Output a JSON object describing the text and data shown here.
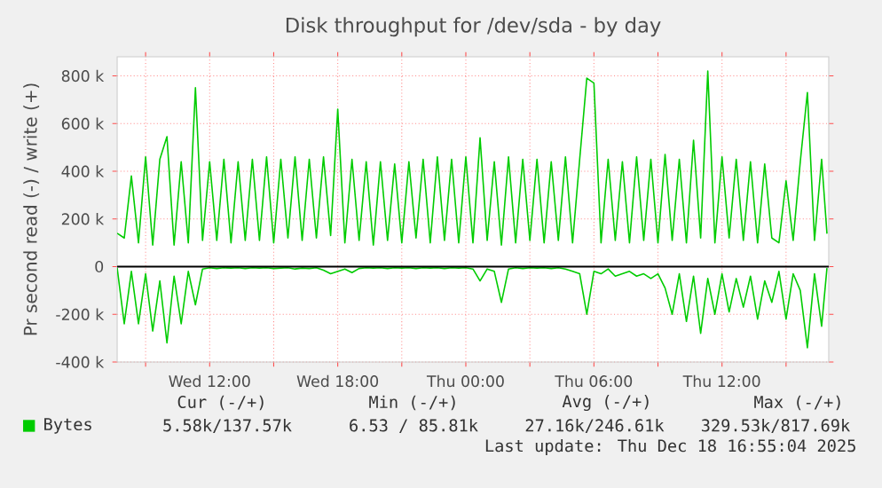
{
  "chart_data": {
    "type": "line",
    "title": "Disk throughput for /dev/sda - by day",
    "ylabel": "Pr second read (-) / write (+)",
    "x": [
      "2025-12-17T07:40",
      "2025-12-17T08:00",
      "2025-12-17T08:20",
      "2025-12-17T08:40",
      "2025-12-17T09:00",
      "2025-12-17T09:20",
      "2025-12-17T09:40",
      "2025-12-17T10:00",
      "2025-12-17T10:20",
      "2025-12-17T10:40",
      "2025-12-17T11:00",
      "2025-12-17T11:20",
      "2025-12-17T11:40",
      "2025-12-17T12:00",
      "2025-12-17T12:20",
      "2025-12-17T12:40",
      "2025-12-17T13:00",
      "2025-12-17T13:20",
      "2025-12-17T13:40",
      "2025-12-17T14:00",
      "2025-12-17T14:20",
      "2025-12-17T14:40",
      "2025-12-17T15:00",
      "2025-12-17T15:20",
      "2025-12-17T15:40",
      "2025-12-17T16:00",
      "2025-12-17T16:20",
      "2025-12-17T16:40",
      "2025-12-17T17:00",
      "2025-12-17T17:20",
      "2025-12-17T17:40",
      "2025-12-17T18:00",
      "2025-12-17T18:20",
      "2025-12-17T18:40",
      "2025-12-17T19:00",
      "2025-12-17T19:20",
      "2025-12-17T19:40",
      "2025-12-17T20:00",
      "2025-12-17T20:20",
      "2025-12-17T20:40",
      "2025-12-17T21:00",
      "2025-12-17T21:20",
      "2025-12-17T21:40",
      "2025-12-17T22:00",
      "2025-12-17T22:20",
      "2025-12-17T22:40",
      "2025-12-17T23:00",
      "2025-12-17T23:20",
      "2025-12-17T23:40",
      "2025-12-18T00:00",
      "2025-12-18T00:20",
      "2025-12-18T00:40",
      "2025-12-18T01:00",
      "2025-12-18T01:20",
      "2025-12-18T01:40",
      "2025-12-18T02:00",
      "2025-12-18T02:20",
      "2025-12-18T02:40",
      "2025-12-18T03:00",
      "2025-12-18T03:20",
      "2025-12-18T03:40",
      "2025-12-18T04:00",
      "2025-12-18T04:20",
      "2025-12-18T04:40",
      "2025-12-18T05:00",
      "2025-12-18T05:20",
      "2025-12-18T05:40",
      "2025-12-18T06:00",
      "2025-12-18T06:20",
      "2025-12-18T06:40",
      "2025-12-18T07:00",
      "2025-12-18T07:20",
      "2025-12-18T07:40",
      "2025-12-18T08:00",
      "2025-12-18T08:20",
      "2025-12-18T08:40",
      "2025-12-18T09:00",
      "2025-12-18T09:20",
      "2025-12-18T09:40",
      "2025-12-18T10:00",
      "2025-12-18T10:20",
      "2025-12-18T10:40",
      "2025-12-18T11:00",
      "2025-12-18T11:20",
      "2025-12-18T11:40",
      "2025-12-18T12:00",
      "2025-12-18T12:20",
      "2025-12-18T12:40",
      "2025-12-18T13:00",
      "2025-12-18T13:20",
      "2025-12-18T13:40",
      "2025-12-18T14:00",
      "2025-12-18T14:20",
      "2025-12-18T14:40",
      "2025-12-18T15:00",
      "2025-12-18T15:20",
      "2025-12-18T15:40",
      "2025-12-18T16:00",
      "2025-12-18T16:20",
      "2025-12-18T16:40",
      "2025-12-18T16:55"
    ],
    "series": [
      {
        "name": "Bytes",
        "color": "#00cc00",
        "values": [
          140,
          120,
          380,
          100,
          460,
          90,
          450,
          545,
          90,
          440,
          100,
          750,
          110,
          440,
          110,
          450,
          100,
          440,
          110,
          450,
          110,
          460,
          100,
          450,
          120,
          460,
          110,
          450,
          120,
          460,
          130,
          660,
          100,
          450,
          110,
          440,
          90,
          440,
          110,
          430,
          100,
          440,
          120,
          450,
          100,
          460,
          110,
          450,
          100,
          460,
          100,
          540,
          110,
          440,
          90,
          460,
          100,
          450,
          110,
          450,
          100,
          440,
          110,
          460,
          100,
          450,
          790,
          770,
          100,
          450,
          110,
          440,
          100,
          460,
          110,
          450,
          100,
          470,
          110,
          450,
          100,
          530,
          120,
          820,
          100,
          460,
          120,
          450,
          110,
          440,
          100,
          430,
          120,
          100,
          360,
          110,
          440,
          730,
          110,
          450,
          138
        ]
      },
      {
        "color": "#00cc00",
        "values": [
          -5,
          -240,
          -20,
          -240,
          -30,
          -270,
          -60,
          -320,
          -40,
          -240,
          -20,
          -160,
          -10,
          -5,
          -8,
          -5,
          -6,
          -5,
          -8,
          -5,
          -6,
          -5,
          -8,
          -6,
          -5,
          -10,
          -6,
          -8,
          -5,
          -15,
          -30,
          -20,
          -10,
          -25,
          -8,
          -5,
          -6,
          -5,
          -8,
          -5,
          -6,
          -5,
          -8,
          -5,
          -6,
          -5,
          -8,
          -5,
          -6,
          -5,
          -10,
          -60,
          -10,
          -20,
          -150,
          -10,
          -5,
          -8,
          -5,
          -6,
          -5,
          -8,
          -5,
          -10,
          -20,
          -30,
          -200,
          -20,
          -30,
          -10,
          -40,
          -30,
          -20,
          -40,
          -30,
          -50,
          -30,
          -90,
          -200,
          -30,
          -230,
          -40,
          -280,
          -50,
          -200,
          -30,
          -190,
          -50,
          -170,
          -40,
          -220,
          -60,
          -150,
          -20,
          -220,
          -30,
          -100,
          -340,
          -30,
          -250,
          -6
        ]
      }
    ],
    "xlim": [
      "2025-12-17T07:40",
      "2025-12-18T17:00"
    ],
    "xticks": [
      {
        "value": "2025-12-17T09:00",
        "label": null
      },
      {
        "value": "2025-12-17T12:00",
        "label": "Wed 12:00"
      },
      {
        "value": "2025-12-17T15:00",
        "label": null
      },
      {
        "value": "2025-12-17T18:00",
        "label": "Wed 18:00"
      },
      {
        "value": "2025-12-17T21:00",
        "label": null
      },
      {
        "value": "2025-12-18T00:00",
        "label": "Thu 00:00"
      },
      {
        "value": "2025-12-18T03:00",
        "label": null
      },
      {
        "value": "2025-12-18T06:00",
        "label": "Thu 06:00"
      },
      {
        "value": "2025-12-18T09:00",
        "label": null
      },
      {
        "value": "2025-12-18T12:00",
        "label": "Thu 12:00"
      },
      {
        "value": "2025-12-18T15:00",
        "label": null
      }
    ],
    "ylim": [
      -400,
      880
    ],
    "yticks": [
      {
        "value": -400,
        "label": "-400 k"
      },
      {
        "value": -200,
        "label": "-200 k"
      },
      0,
      {
        "value": 200,
        "label": "200 k"
      },
      {
        "value": 400,
        "label": "400 k"
      },
      {
        "value": 600,
        "label": "600 k"
      },
      {
        "value": 800,
        "label": "800 k"
      }
    ],
    "ref_lines": [
      {
        "axis": "y",
        "value": 0,
        "color": "#000000"
      }
    ],
    "grid": true,
    "legend": "bottom left",
    "marker": "none",
    "line_style": "solid",
    "annotations": [
      "Cur (-/+)",
      "Min (-/+)",
      "Avg (-/+)",
      "Max (-/+)",
      "5.58k/137.57k",
      "6.53 / 85.81k",
      "27.16k/246.61k",
      "329.53k/817.69k",
      "Last update: Thu Dec 18 16:55:04 2025"
    ]
  }
}
